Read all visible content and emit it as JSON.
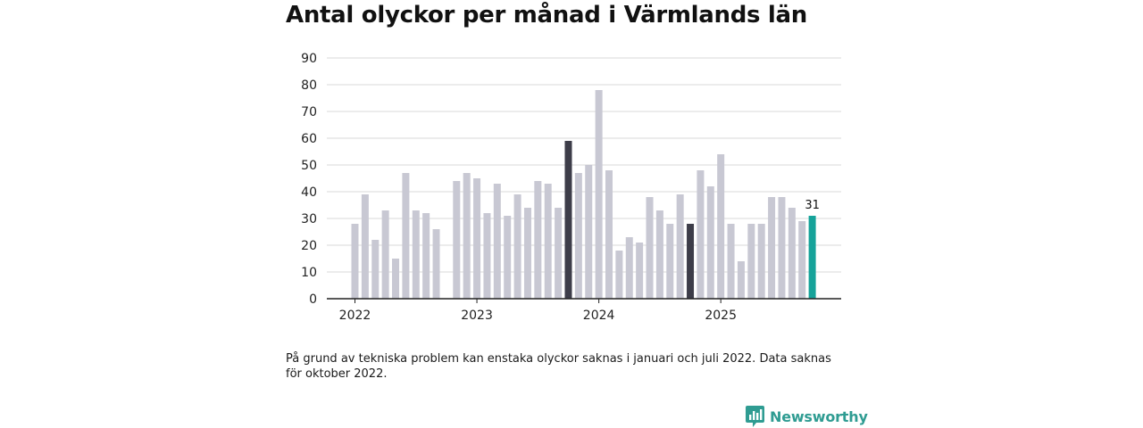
{
  "page": {
    "title": "Antal olyckor per månad i Värmlands län",
    "note": "På grund av tekniska problem kan enstaka olyckor saknas i januari och juli 2022. Data saknas för oktober 2022.",
    "brand": "Newsworthy"
  },
  "colors": {
    "bar_default": "#c8c8d3",
    "bar_highlight": "#3d3d49",
    "bar_latest": "#16a39a",
    "grid": "#dadada",
    "axis": "#222222",
    "brand": "#2f9c92"
  },
  "icons": {
    "brand_logo": "newsworthy-logo-icon"
  },
  "chart_data": {
    "type": "bar",
    "title": "Antal olyckor per månad i Värmlands län",
    "xlabel": "",
    "ylabel": "",
    "ylim": [
      0,
      90
    ],
    "yticks": [
      0,
      10,
      20,
      30,
      40,
      50,
      60,
      70,
      80,
      90
    ],
    "grid": true,
    "legend": "none",
    "year_labels": [
      {
        "label": "2022",
        "month": "2022-01"
      },
      {
        "label": "2023",
        "month": "2023-01"
      },
      {
        "label": "2024",
        "month": "2024-01"
      },
      {
        "label": "2025",
        "month": "2025-01"
      }
    ],
    "highlight_months": [
      "2023-10",
      "2024-10"
    ],
    "latest_month": "2025-10",
    "data_labels": [
      {
        "month": "2025-10",
        "text": "31"
      }
    ],
    "categories": [
      "2022-01",
      "2022-02",
      "2022-03",
      "2022-04",
      "2022-05",
      "2022-06",
      "2022-07",
      "2022-08",
      "2022-09",
      "2022-10",
      "2022-11",
      "2022-12",
      "2023-01",
      "2023-02",
      "2023-03",
      "2023-04",
      "2023-05",
      "2023-06",
      "2023-07",
      "2023-08",
      "2023-09",
      "2023-10",
      "2023-11",
      "2023-12",
      "2024-01",
      "2024-02",
      "2024-03",
      "2024-04",
      "2024-05",
      "2024-06",
      "2024-07",
      "2024-08",
      "2024-09",
      "2024-10",
      "2024-11",
      "2024-12",
      "2025-01",
      "2025-02",
      "2025-03",
      "2025-04",
      "2025-05",
      "2025-06",
      "2025-07",
      "2025-08",
      "2025-09",
      "2025-10"
    ],
    "values": [
      28,
      39,
      22,
      33,
      15,
      47,
      33,
      32,
      26,
      null,
      44,
      47,
      45,
      32,
      43,
      31,
      39,
      34,
      44,
      43,
      34,
      59,
      47,
      50,
      78,
      48,
      18,
      23,
      21,
      38,
      33,
      28,
      39,
      28,
      48,
      42,
      54,
      28,
      14,
      28,
      28,
      38,
      38,
      34,
      29,
      31
    ]
  }
}
